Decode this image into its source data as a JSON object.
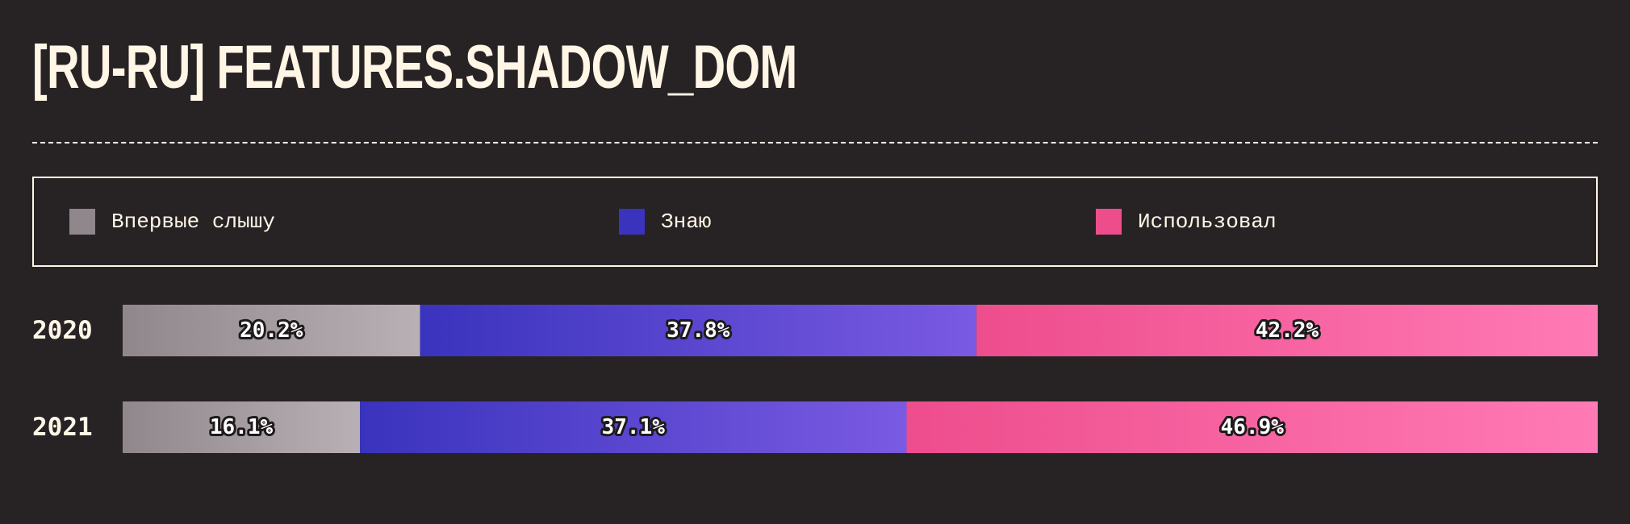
{
  "title": "[RU-RU] FEATURES.SHADOW_DOM",
  "legend": [
    {
      "label": "Впервые слышу",
      "color": "#8f878c"
    },
    {
      "label": "Знаю",
      "color": "#3a33bd"
    },
    {
      "label": "Использовал",
      "color": "#ee4d8c"
    }
  ],
  "chart_data": {
    "type": "bar",
    "orientation": "horizontal",
    "stacked": true,
    "normalized": true,
    "categories": [
      "2020",
      "2021"
    ],
    "series": [
      {
        "name": "Впервые слышу",
        "values": [
          20.2,
          16.1
        ],
        "labels": [
          "20.2%",
          "16.1%"
        ],
        "color_start": "#8f878c",
        "color_end": "#b8b0b4"
      },
      {
        "name": "Знаю",
        "values": [
          37.8,
          37.1
        ],
        "labels": [
          "37.8%",
          "37.1%"
        ],
        "color_start": "#3a33bd",
        "color_end": "#7a5ae2"
      },
      {
        "name": "Использовал",
        "values": [
          42.2,
          46.9
        ],
        "labels": [
          "42.2%",
          "46.9%"
        ],
        "color_start": "#ee4d8c",
        "color_end": "#ff7ab5"
      }
    ],
    "xlim": [
      0,
      100
    ],
    "grid": false,
    "legend_position": "top"
  }
}
